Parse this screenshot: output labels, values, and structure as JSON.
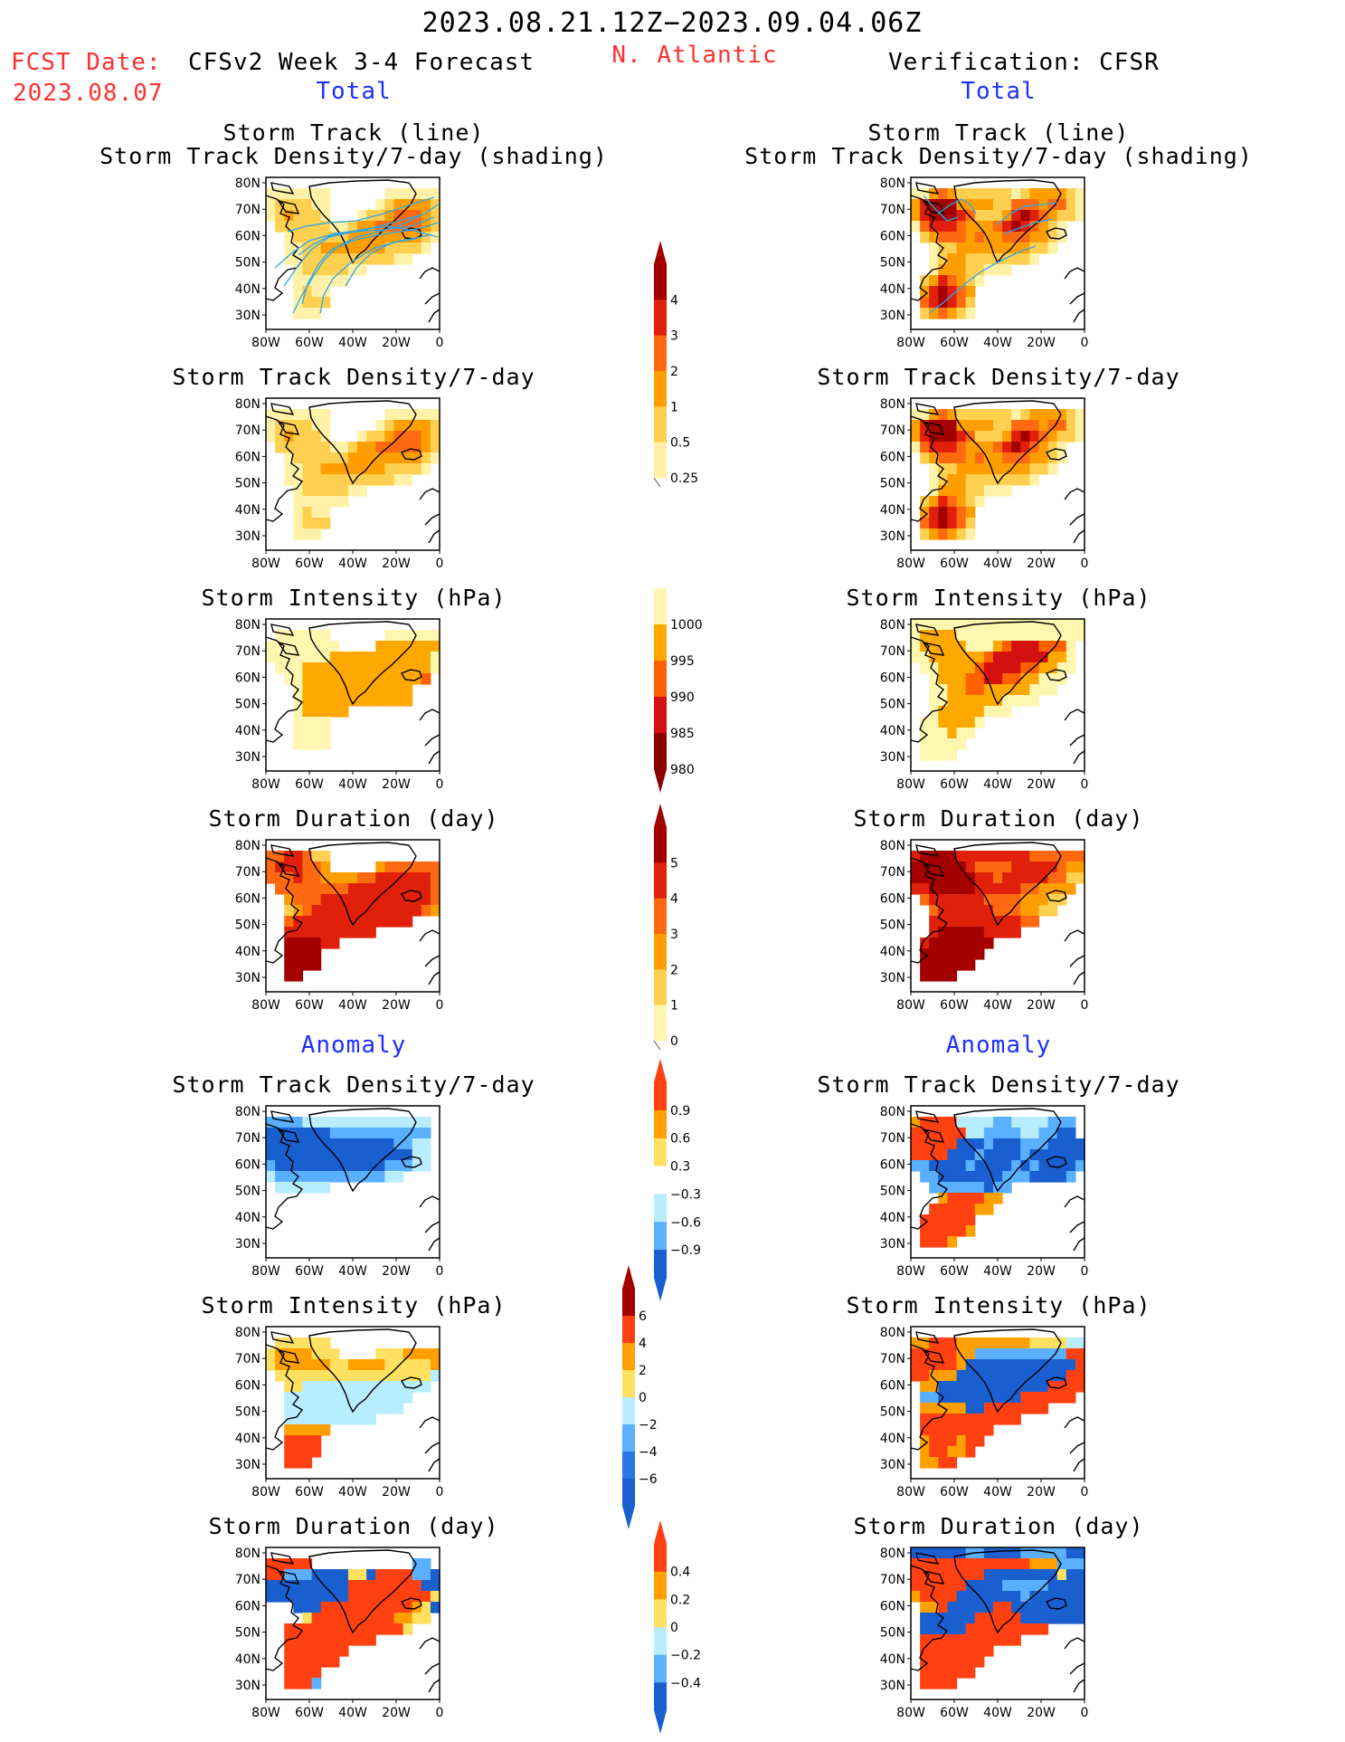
{
  "header": {
    "period": "2023.08.21.12Z−2023.09.04.06Z",
    "region": "N. Atlantic",
    "fcst_label": "FCST Date:",
    "fcst_date": "2023.08.07",
    "left_model": "CFSv2 Week 3-4 Forecast",
    "right_model": "Verification: CFSR",
    "total_label": "Total",
    "anomaly_label": "Anomaly"
  },
  "panels": {
    "track_line_title": "Storm Track (line)",
    "track_shading_title": "Storm Track Density/7-day (shading)",
    "density_title": "Storm Track Density/7-day",
    "intensity_title": "Storm Intensity (hPa)",
    "duration_title": "Storm Duration (day)"
  },
  "axes": {
    "lat": [
      "80N",
      "70N",
      "60N",
      "50N",
      "40N",
      "30N"
    ],
    "lon": [
      "80W",
      "60W",
      "40W",
      "20W",
      "0"
    ]
  },
  "colorbars": {
    "density": {
      "labels": [
        "4",
        "3",
        "2",
        "1",
        "0.5",
        "0.25"
      ],
      "colors": [
        "#a50000",
        "#e0200a",
        "#ff6a10",
        "#ff9e00",
        "#ffcf50",
        "#fff2a8"
      ]
    },
    "intensity": {
      "labels": [
        "1000",
        "995",
        "990",
        "985",
        "980"
      ],
      "colors": [
        "#fff6b0",
        "#ffa800",
        "#ff6000",
        "#d41010",
        "#8a0000"
      ]
    },
    "duration": {
      "labels": [
        "5",
        "4",
        "3",
        "2",
        "1",
        "0"
      ],
      "colors": [
        "#a50000",
        "#e0200a",
        "#ff6a10",
        "#ff9e00",
        "#ffcf50",
        "#fff6b0"
      ]
    },
    "anom_density": {
      "labels": [
        "0.9",
        "0.6",
        "0.3",
        "−0.3",
        "−0.6",
        "−0.9"
      ],
      "colors": [
        "#ff4010",
        "#ffa000",
        "#ffe060",
        "#ffffff",
        "#b8ecff",
        "#5ab0ff",
        "#1a5fd0"
      ]
    },
    "anom_intensity": {
      "labels": [
        "6",
        "4",
        "2",
        "0",
        "−2",
        "−4",
        "−6"
      ],
      "colors": [
        "#a50000",
        "#ff4010",
        "#ffa000",
        "#ffe060",
        "#b8ecff",
        "#5ab0ff",
        "#2a78e6",
        "#1a5fd0"
      ]
    },
    "anom_duration": {
      "labels": [
        "0.4",
        "0.2",
        "0",
        "−0.2",
        "−0.4"
      ],
      "colors": [
        "#ff4010",
        "#ffa000",
        "#ffe060",
        "#b8ecff",
        "#5ab0ff",
        "#1a5fd0"
      ]
    }
  },
  "fields": {
    "fc_track": {
      "palette": [
        "#ffffff",
        "#fff2a8",
        "#ffcf50",
        "#ff9e00",
        "#ff6a10",
        "#e0200a",
        "#a50000"
      ],
      "grid": [
        "0000000000000000000",
        "1111111000000111111",
        "1222211000001233332",
        "1232221000122344432",
        "0222222112334444432",
        "0012222223333333321",
        "0011223333333222210",
        "0011222222222211000",
        "0001222221100000000",
        "0001111110000000000",
        "0001211000000000000",
        "0001222000000000000",
        "0001110000000000000",
        "0000000000000000000"
      ]
    },
    "obs_track": {
      "palette": [
        "#ffffff",
        "#fff2a8",
        "#ffcf50",
        "#ff9e00",
        "#ff6a10",
        "#e0200a",
        "#a50000"
      ],
      "grid": [
        "0000000000000000000",
        "1134322222212333321",
        "3566633332244434421",
        "3566654222356543221",
        "1455543334565432100",
        "0234443433444332100",
        "0012233333333221000",
        "0012332222222100000",
        "0013332211100000000",
        "0235432100000000000",
        "0356543000000000000",
        "0456542000000000000",
        "0234321000000000000",
        "0000000000000000000"
      ]
    },
    "fc_intensity": {
      "palette": [
        "#ffffff",
        "#fff6b0",
        "#ffa800",
        "#ff6000",
        "#d41010"
      ],
      "grid": [
        "0000000000000000000",
        "0111111000000111111",
        "1111111100002222222",
        "1111111222222222221",
        "0111222222222222221",
        "0011222222222222230",
        "0001222222222222000",
        "0001222222222222000",
        "0001222220000000000",
        "0001111000000000000",
        "0001111000000000000",
        "0001111000000000000",
        "0000000000000000000",
        "0000000000000000000"
      ]
    },
    "obs_intensity": {
      "palette": [
        "#ffffff",
        "#fff6b0",
        "#ffa800",
        "#ff6000",
        "#d41010"
      ],
      "grid": [
        "1111111111111111111",
        "1222211111111111111",
        "1222221112344433310",
        "1122222234444442210",
        "0112222344443322110",
        "0012223344332211100",
        "0011223322222111000",
        "0011222222111100000",
        "0012222211100000000",
        "0112222100000000000",
        "0111211000000000000",
        "0111110000000000000",
        "0111100000000000000",
        "0000000000000000000"
      ]
    },
    "fc_duration": {
      "palette": [
        "#ffffff",
        "#fff6b0",
        "#ffcf50",
        "#ff9e00",
        "#ff6a10",
        "#e0200a",
        "#a50000"
      ],
      "grid": [
        "0000000000000000000",
        "4455422000000000000",
        "4555443000003444444",
        "4445443333445555554",
        "0444444445555555554",
        "0034445555555555554",
        "0023455555555555543",
        "0045555555555555000",
        "0055555555550000000",
        "0066665500000000000",
        "0066660000000000000",
        "0066660000000000000",
        "0066000000000000000",
        "0000000000000000000"
      ]
    },
    "obs_duration": {
      "palette": [
        "#ffffff",
        "#fff6b0",
        "#ffcf50",
        "#ff9e00",
        "#ff6a10",
        "#e0200a",
        "#a50000"
      ],
      "grid": [
        "0000000000000000000",
        "5666655555555444444",
        "6666665444455555433",
        "6666666554555554422",
        "5566666555554433330",
        "0455555544443332200",
        "0045555554443322000",
        "0055555555554400000",
        "0056666655550000000",
        "0566666660000000000",
        "0666666600000000000",
        "0666666000000000000",
        "0666600000000000000",
        "0000000000000000000"
      ]
    },
    "fc_anom_density": {
      "palette": [
        "#ffffff",
        "#b8ecff",
        "#5ab0ff",
        "#1a5fd0",
        "#ffe060",
        "#ffa000",
        "#ff4010"
      ],
      "grid": [
        "0000000000000000000",
        "2222111111111111110",
        "3333333222222222220",
        "3333333333333322110",
        "3333333333333333110",
        "2333333333333222110",
        "1222222222222110000",
        "0111111000000000000",
        "0000000000000000000",
        "0000000000000000000",
        "0000000000000000000",
        "0000000000000000000",
        "0000000000000000000",
        "0000000000000000000"
      ]
    },
    "obs_anom_density": {
      "palette": [
        "#ffffff",
        "#b8ecff",
        "#5ab0ff",
        "#1a5fd0",
        "#ffe060",
        "#ffa000",
        "#ff4010"
      ],
      "grid": [
        "0000000000000000000",
        "5666611112211112220",
        "6666661122221122330",
        "6666633323332223333",
        "6666333233332333333",
        "2233332333323233332",
        "0223333333222333320",
        "0022222232200000000",
        "0005666655000000000",
        "0066666550000000000",
        "0666666000000000000",
        "0666665000000000000",
        "0666500000000000000",
        "0000000000000000000"
      ]
    },
    "fc_anom_intensity": {
      "palette": [
        "#ffffff",
        "#b8ecff",
        "#5ab0ff",
        "#1a5fd0",
        "#ffe060",
        "#ffa000",
        "#ff4010"
      ],
      "grid": [
        "0000000000000000000",
        "0444444000000000000",
        "4555544400004445555",
        "4555555445555444445",
        "0444444444444444441",
        "0044111111111111110",
        "0011111111111111000",
        "0011111111111110000",
        "0011111111110000000",
        "0055555000000000000",
        "0066660000000000000",
        "0066660000000000000",
        "0066600000000000000",
        "0000000000000000000"
      ]
    },
    "obs_anom_intensity": {
      "palette": [
        "#ffffff",
        "#b8ecff",
        "#5ab0ff",
        "#1a5fd0",
        "#ffe060",
        "#ffa000",
        "#ff4010"
      ],
      "grid": [
        "0000000000000000000",
        "5566655555555444411",
        "6666655222222222266",
        "6666653333333333336",
        "6655533333333333366",
        "0553333333333336666",
        "0223333333336666660",
        "0555553366666660000",
        "0666666666660000000",
        "0666666660000000000",
        "0566656600000000000",
        "0566556000000000000",
        "0556600000000000000",
        "0000000000000000000"
      ]
    },
    "fc_anom_duration": {
      "palette": [
        "#ffffff",
        "#b8ecff",
        "#5ab0ff",
        "#1a5fd0",
        "#ffe060",
        "#ffa000",
        "#ff4010"
      ],
      "grid": [
        "0000000000000000000",
        "6666600000000000220",
        "6622233334436666223",
        "3333333336666666633",
        "3333333336666666664",
        "0003336666666666543",
        "0000466666666655440",
        "0066666666666664000",
        "0066666666660000000",
        "0066666660000000000",
        "0066666600000000000",
        "0066660000000000000",
        "0066620000000000000",
        "0000000000000000000"
      ]
    },
    "obs_anom_duration": {
      "palette": [
        "#ffffff",
        "#b8ecff",
        "#5ab0ff",
        "#1a5fd0",
        "#ffe060",
        "#ffa000",
        "#ff4010"
      ],
      "grid": [
        "3333332233332222233",
        "6666666666666555222",
        "6666666633333333433",
        "6666663333222223333",
        "5666633333332333333",
        "0556333336633333333",
        "0333333666663333333",
        "0333336666666660000",
        "0666666666660000000",
        "0666666660000000000",
        "0666666600000000000",
        "0666666000000000000",
        "0666600000000000000",
        "0000000000000000000"
      ]
    }
  }
}
